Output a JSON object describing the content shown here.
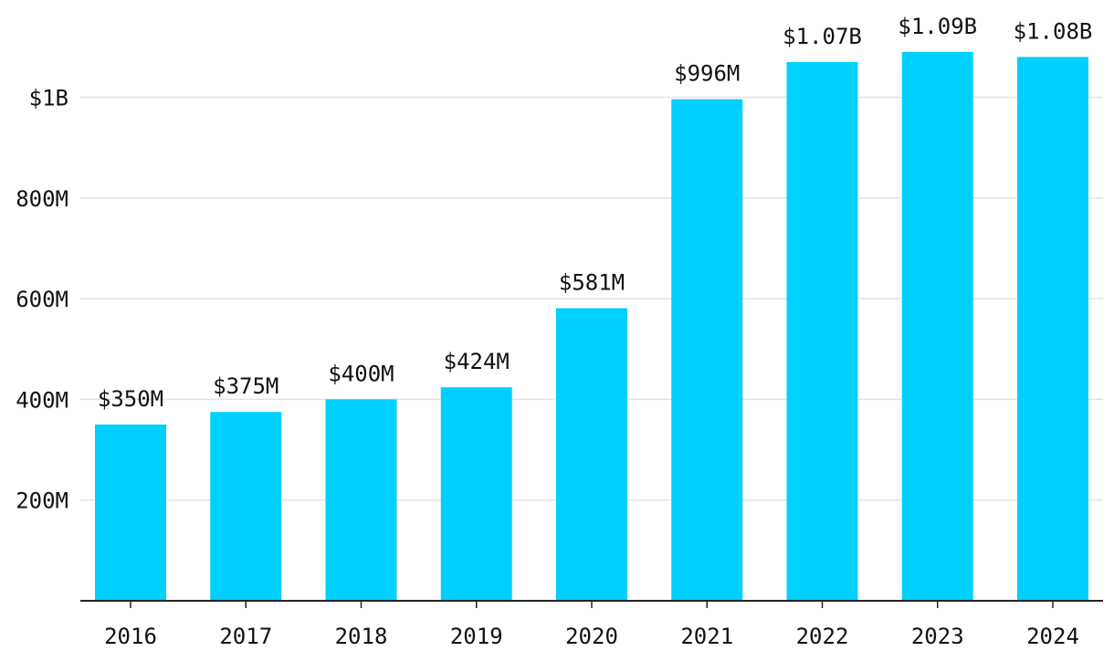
{
  "chart_data": {
    "type": "bar",
    "title": "",
    "xlabel": "",
    "ylabel": "",
    "categories": [
      "2016",
      "2017",
      "2018",
      "2019",
      "2020",
      "2021",
      "2022",
      "2023",
      "2024"
    ],
    "values": [
      350,
      375,
      400,
      424,
      581,
      996,
      1070,
      1090,
      1080
    ],
    "value_units": "millions USD",
    "data_labels": [
      "$350M",
      "$375M",
      "$400M",
      "$424M",
      "$581M",
      "$996M",
      "$1.07B",
      "$1.09B",
      "$1.08B"
    ],
    "yticks": [
      200,
      400,
      600,
      800,
      1000
    ],
    "ytick_labels": [
      "200M",
      "400M",
      "600M",
      "800M",
      "$1B"
    ],
    "ylim": [
      0,
      1000
    ],
    "grid": true,
    "legend": "none",
    "bar_color": "#00d0ff",
    "gridline_color": "#e3e3e3",
    "axis_color": "#222222"
  }
}
